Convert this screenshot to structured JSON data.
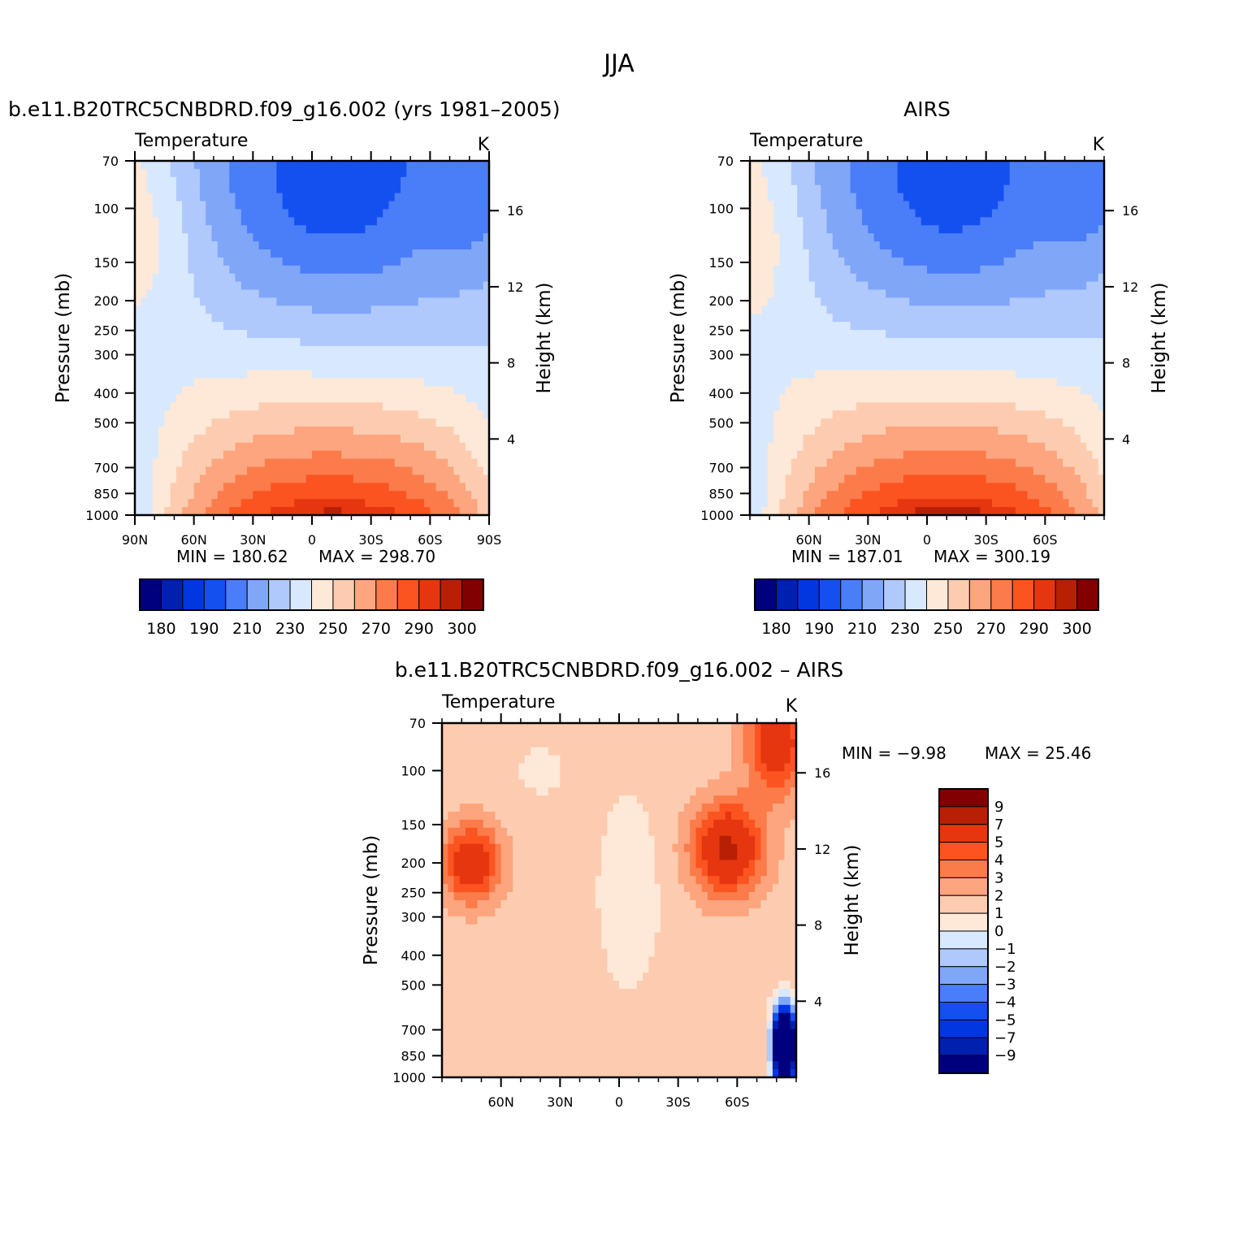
{
  "figure": {
    "title": "JJA"
  },
  "palette": {
    "abs": [
      "#00007f",
      "#0020b0",
      "#0037e0",
      "#1450f0",
      "#4a7df8",
      "#80a6f8",
      "#b0c9fc",
      "#d8e8fe",
      "#fee8d8",
      "#fdccb0",
      "#fca57e",
      "#fb7b4a",
      "#fb5420",
      "#e63610",
      "#b82005",
      "#830000"
    ],
    "diff": [
      "#830000",
      "#b82005",
      "#e63610",
      "#fb5420",
      "#fb7b4a",
      "#fca57e",
      "#fdccb0",
      "#fee8d8",
      "#d8e8fe",
      "#b0c9fc",
      "#80a6f8",
      "#4a7df8",
      "#1450f0",
      "#0037e0",
      "#0020b0",
      "#00007f"
    ]
  },
  "chart_data": [
    {
      "id": "model",
      "type": "contour",
      "title": "b.e11.B20TRC5CNBDRD.f09_g16.002 (yrs 1981–2005)",
      "subtitle_left": "Temperature",
      "subtitle_right": "K",
      "ylabel": "Pressure (mb)",
      "ylabel_right": "Height (km)",
      "y_ticks": [
        "70",
        "100",
        "150",
        "200",
        "250",
        "300",
        "400",
        "500",
        "700",
        "850",
        "1000"
      ],
      "y_tick_values": [
        70,
        100,
        150,
        200,
        250,
        300,
        400,
        500,
        700,
        850,
        1000
      ],
      "right_ticks": [
        "16",
        "12",
        "8",
        "4"
      ],
      "right_tick_values": [
        16,
        12,
        8,
        4
      ],
      "x_ticks": [
        "90N",
        "60N",
        "30N",
        "0",
        "30S",
        "60S",
        "90S"
      ],
      "x_tick_values": [
        90,
        60,
        30,
        0,
        -30,
        -60,
        -90
      ],
      "xlim": [
        90,
        -90
      ],
      "ylim": [
        1000,
        70
      ],
      "min_label": "MIN =  180.62",
      "max_label": "MAX =  298.70",
      "min": 180.62,
      "max": 298.7,
      "colorbar_labels": [
        "180",
        "190",
        "210",
        "230",
        "250",
        "270",
        "290",
        "300"
      ]
    },
    {
      "id": "airs",
      "type": "contour",
      "title": "AIRS",
      "subtitle_left": "Temperature",
      "subtitle_right": "K",
      "ylabel": "Pressure (mb)",
      "ylabel_right": "Height (km)",
      "y_ticks": [
        "70",
        "100",
        "150",
        "200",
        "250",
        "300",
        "400",
        "500",
        "700",
        "850",
        "1000"
      ],
      "y_tick_values": [
        70,
        100,
        150,
        200,
        250,
        300,
        400,
        500,
        700,
        850,
        1000
      ],
      "right_ticks": [
        "16",
        "12",
        "8",
        "4"
      ],
      "right_tick_values": [
        16,
        12,
        8,
        4
      ],
      "x_ticks": [
        "60N",
        "30N",
        "0",
        "30S",
        "60S"
      ],
      "x_tick_values": [
        60,
        30,
        0,
        -30,
        -60
      ],
      "xlim": [
        90,
        -90
      ],
      "ylim": [
        1000,
        70
      ],
      "min_label": "MIN =  187.01",
      "max_label": "MAX =  300.19",
      "min": 187.01,
      "max": 300.19,
      "colorbar_labels": [
        "180",
        "190",
        "210",
        "230",
        "250",
        "270",
        "290",
        "300"
      ]
    },
    {
      "id": "diff",
      "type": "contour",
      "title": "b.e11.B20TRC5CNBDRD.f09_g16.002 – AIRS",
      "subtitle_left": "Temperature",
      "subtitle_right": "K",
      "ylabel": "Pressure (mb)",
      "ylabel_right": "Height (km)",
      "y_ticks": [
        "70",
        "100",
        "150",
        "200",
        "250",
        "300",
        "400",
        "500",
        "700",
        "850",
        "1000"
      ],
      "y_tick_values": [
        70,
        100,
        150,
        200,
        250,
        300,
        400,
        500,
        700,
        850,
        1000
      ],
      "right_ticks": [
        "16",
        "12",
        "8",
        "4"
      ],
      "right_tick_values": [
        16,
        12,
        8,
        4
      ],
      "x_ticks": [
        "60N",
        "30N",
        "0",
        "30S",
        "60S"
      ],
      "x_tick_values": [
        60,
        30,
        0,
        -30,
        -60
      ],
      "xlim": [
        90,
        -90
      ],
      "ylim": [
        1000,
        70
      ],
      "min_label": "MIN =   −9.98",
      "max_label": "MAX =   25.46",
      "min": -9.98,
      "max": 25.46,
      "colorbar_labels": [
        "9",
        "7",
        "5",
        "4",
        "3",
        "2",
        "1",
        "0",
        "−1",
        "−2",
        "−3",
        "−4",
        "−5",
        "−7",
        "−9"
      ]
    }
  ]
}
